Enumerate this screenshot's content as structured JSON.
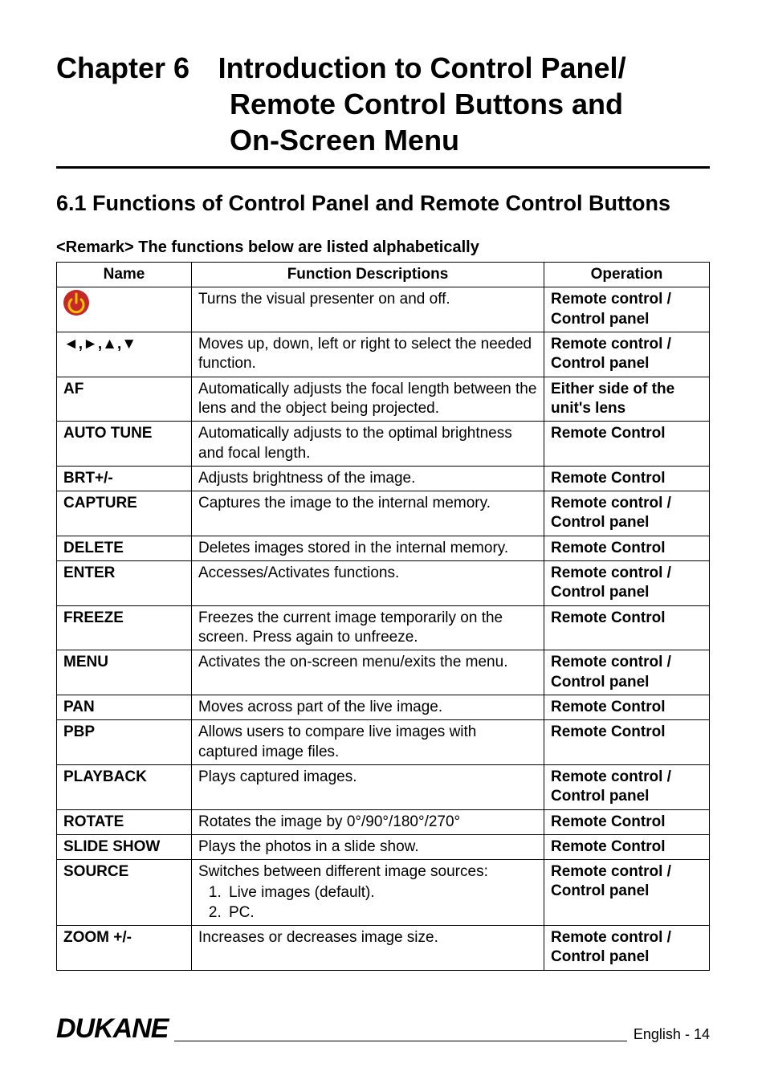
{
  "chapter": {
    "prefix": "Chapter 6",
    "line1": "Introduction to Control Panel/",
    "line2": "Remote Control Buttons and",
    "line3": "On-Screen Menu"
  },
  "section_title": "6.1 Functions of Control Panel and Remote Control Buttons",
  "remark": "<Remark> The functions below are listed alphabetically",
  "table": {
    "headers": {
      "name": "Name",
      "desc": "Function Descriptions",
      "op": "Operation"
    },
    "col_widths": {
      "name": 168,
      "op": 206
    },
    "header_fontsize": 19,
    "cell_fontsize": 19,
    "border_color": "#000000",
    "rows": [
      {
        "name_type": "icon",
        "name_icon": "power-icon",
        "desc": "Turns the visual presenter on and off.",
        "op": "Remote control / Control panel"
      },
      {
        "name": "◄,►,▲,▼",
        "desc": "Moves up, down, left or right to select the needed function.",
        "op": "Remote control / Control panel"
      },
      {
        "name": "AF",
        "desc": "Automatically adjusts the focal length between the lens and the object being projected.",
        "op": "Either side of the unit's lens"
      },
      {
        "name": "AUTO TUNE",
        "desc": "Automatically adjusts to the optimal brightness and focal length.",
        "op": "Remote Control"
      },
      {
        "name": "BRT+/-",
        "desc": "Adjusts brightness of the image.",
        "op": "Remote Control"
      },
      {
        "name": "CAPTURE",
        "desc": "Captures the image to the internal memory.",
        "op": "Remote control / Control panel"
      },
      {
        "name": "DELETE",
        "desc": "Deletes images stored in the internal memory.",
        "op": "Remote Control"
      },
      {
        "name": "ENTER",
        "desc": "Accesses/Activates functions.",
        "op": "Remote control / Control panel"
      },
      {
        "name": "FREEZE",
        "desc": "Freezes the current image temporarily on the screen. Press again to unfreeze.",
        "op": "Remote Control"
      },
      {
        "name": "MENU",
        "desc": "Activates the on-screen menu/exits the menu.",
        "op": "Remote control / Control panel"
      },
      {
        "name": "PAN",
        "desc": "Moves across part of the live image.",
        "op": "Remote Control"
      },
      {
        "name": "PBP",
        "desc": "Allows users to compare live images with captured image files.",
        "op": "Remote Control"
      },
      {
        "name": "PLAYBACK",
        "desc": "Plays captured images.",
        "op": "Remote control / Control panel"
      },
      {
        "name": "ROTATE",
        "desc": "Rotates the image by 0°/90°/180°/270°",
        "op": "Remote Control"
      },
      {
        "name": "SLIDE SHOW",
        "desc": "Plays the photos in a slide show.",
        "op": "Remote Control"
      },
      {
        "name": "SOURCE",
        "name_type": "source",
        "desc": "Switches between different image sources:",
        "list": [
          "Live images (default).",
          "PC."
        ],
        "op": "Remote control / Control panel"
      },
      {
        "name": "ZOOM +/-",
        "desc": "Increases or decreases image size.",
        "op": "Remote control / Control panel"
      }
    ]
  },
  "icons": {
    "power": {
      "bg_color": "#c62828",
      "stroke_color": "#f2c200",
      "stroke_width": 3
    }
  },
  "footer": {
    "logo": "DUKANE",
    "page_label": "English",
    "page_sep": "-",
    "page_num": "14"
  },
  "colors": {
    "background": "#ffffff",
    "text": "#000000",
    "rule": "#000000"
  }
}
